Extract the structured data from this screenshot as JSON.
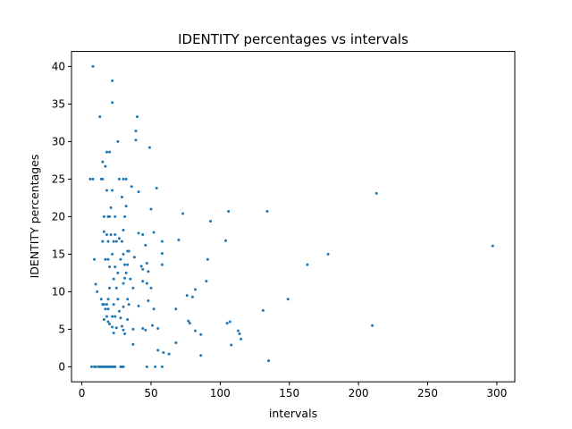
{
  "chart_data": {
    "type": "scatter",
    "title": "IDENTITY percentages vs intervals",
    "xlabel": "intervals",
    "ylabel": "IDENTITY percentages",
    "xlim": [
      -7.5,
      313
    ],
    "ylim": [
      -2,
      42
    ],
    "xticks": [
      0,
      50,
      100,
      150,
      200,
      250,
      300
    ],
    "yticks": [
      0,
      5,
      10,
      15,
      20,
      25,
      30,
      35,
      40
    ],
    "grid": false,
    "color": "#1f77b4",
    "points": [
      [
        7,
        0
      ],
      [
        9,
        0
      ],
      [
        10,
        0
      ],
      [
        12,
        0
      ],
      [
        13,
        0
      ],
      [
        14,
        0
      ],
      [
        15,
        0
      ],
      [
        16,
        0
      ],
      [
        17,
        0
      ],
      [
        18,
        0
      ],
      [
        19,
        0
      ],
      [
        20,
        0
      ],
      [
        21,
        0
      ],
      [
        22,
        0
      ],
      [
        23,
        0
      ],
      [
        24,
        0
      ],
      [
        28,
        0
      ],
      [
        29,
        0
      ],
      [
        30,
        0
      ],
      [
        47,
        0
      ],
      [
        53,
        0
      ],
      [
        58,
        0
      ],
      [
        8,
        40
      ],
      [
        22,
        38.1
      ],
      [
        22,
        35.2
      ],
      [
        40,
        33.3
      ],
      [
        13,
        33.3
      ],
      [
        39,
        31.4
      ],
      [
        39,
        30.2
      ],
      [
        26,
        30
      ],
      [
        49,
        29.2
      ],
      [
        18,
        28.6
      ],
      [
        20,
        28.6
      ],
      [
        15,
        27.3
      ],
      [
        17,
        26.7
      ],
      [
        6,
        25
      ],
      [
        8,
        25
      ],
      [
        14,
        25
      ],
      [
        15,
        25
      ],
      [
        27,
        25
      ],
      [
        30,
        25
      ],
      [
        32,
        25
      ],
      [
        36,
        24
      ],
      [
        54,
        23.8
      ],
      [
        18,
        23.5
      ],
      [
        22,
        23.5
      ],
      [
        41,
        23.3
      ],
      [
        29,
        22.6
      ],
      [
        32,
        21.4
      ],
      [
        21,
        21.2
      ],
      [
        50,
        21
      ],
      [
        16,
        20
      ],
      [
        19,
        20
      ],
      [
        20,
        20
      ],
      [
        24,
        20
      ],
      [
        31,
        20
      ],
      [
        73,
        20.4
      ],
      [
        106,
        20.7
      ],
      [
        134,
        20.7
      ],
      [
        213,
        23.1
      ],
      [
        93,
        19.4
      ],
      [
        30,
        18.2
      ],
      [
        16,
        18
      ],
      [
        21,
        17.6
      ],
      [
        41,
        17.8
      ],
      [
        44,
        17.6
      ],
      [
        24,
        17.6
      ],
      [
        18,
        17.6
      ],
      [
        52,
        17.9
      ],
      [
        27,
        17.1
      ],
      [
        15,
        16.7
      ],
      [
        19,
        16.7
      ],
      [
        23,
        16.7
      ],
      [
        25,
        16.7
      ],
      [
        29,
        16.7
      ],
      [
        46,
        16.2
      ],
      [
        58,
        16.7
      ],
      [
        70,
        16.9
      ],
      [
        104,
        16.8
      ],
      [
        297,
        16.1
      ],
      [
        9,
        14.3
      ],
      [
        17,
        14.3
      ],
      [
        19,
        14.3
      ],
      [
        28,
        14.3
      ],
      [
        33,
        15.4
      ],
      [
        34,
        15.4
      ],
      [
        30,
        15
      ],
      [
        38,
        14.6
      ],
      [
        58,
        15.1
      ],
      [
        178,
        15
      ],
      [
        22,
        15
      ],
      [
        91,
        14.3
      ],
      [
        20,
        13.3
      ],
      [
        24,
        13.3
      ],
      [
        31,
        13.6
      ],
      [
        33,
        13.6
      ],
      [
        43,
        13.4
      ],
      [
        44,
        13
      ],
      [
        47,
        13.8
      ],
      [
        58,
        13.6
      ],
      [
        163,
        13.6
      ],
      [
        26,
        12.5
      ],
      [
        32,
        12.5
      ],
      [
        48,
        12.7
      ],
      [
        31,
        11.8
      ],
      [
        35,
        11.7
      ],
      [
        23,
        11.7
      ],
      [
        30,
        11.1
      ],
      [
        44,
        11.4
      ],
      [
        47,
        11.1
      ],
      [
        90,
        11.4
      ],
      [
        10,
        11
      ],
      [
        20,
        10.5
      ],
      [
        11,
        10
      ],
      [
        25,
        10.5
      ],
      [
        37,
        10.5
      ],
      [
        50,
        10.5
      ],
      [
        82,
        10.3
      ],
      [
        76,
        9.5
      ],
      [
        80,
        9.3
      ],
      [
        149,
        9
      ],
      [
        14,
        9
      ],
      [
        19,
        9
      ],
      [
        26,
        9
      ],
      [
        33,
        9
      ],
      [
        48,
        8.8
      ],
      [
        15,
        8.3
      ],
      [
        16,
        8.3
      ],
      [
        18,
        8.3
      ],
      [
        23,
        8.3
      ],
      [
        30,
        8
      ],
      [
        34,
        8.3
      ],
      [
        41,
        8.1
      ],
      [
        52,
        7.7
      ],
      [
        17,
        7.7
      ],
      [
        19,
        7.7
      ],
      [
        27,
        7.4
      ],
      [
        68,
        7.7
      ],
      [
        131,
        7.5
      ],
      [
        18,
        6.7
      ],
      [
        22,
        6.7
      ],
      [
        24,
        6.7
      ],
      [
        28,
        6.5
      ],
      [
        33,
        6.3
      ],
      [
        16,
        6.3
      ],
      [
        19,
        6
      ],
      [
        20,
        5.7
      ],
      [
        77,
        6.1
      ],
      [
        78,
        5.8
      ],
      [
        105,
        5.8
      ],
      [
        107,
        6
      ],
      [
        210,
        5.5
      ],
      [
        22,
        5.3
      ],
      [
        25,
        5.2
      ],
      [
        29,
        5.4
      ],
      [
        30,
        4.9
      ],
      [
        37,
        5
      ],
      [
        44,
        5.1
      ],
      [
        46,
        4.9
      ],
      [
        51,
        5.5
      ],
      [
        55,
        5.1
      ],
      [
        23,
        4.5
      ],
      [
        31,
        4.4
      ],
      [
        86,
        4.3
      ],
      [
        82,
        4.8
      ],
      [
        113,
        4.8
      ],
      [
        114,
        4.4
      ],
      [
        115,
        3.7
      ],
      [
        68,
        3.2
      ],
      [
        37,
        3
      ],
      [
        108,
        2.9
      ],
      [
        55,
        2.2
      ],
      [
        59,
        1.9
      ],
      [
        63,
        1.7
      ],
      [
        86,
        1.5
      ],
      [
        135,
        0.8
      ]
    ]
  }
}
